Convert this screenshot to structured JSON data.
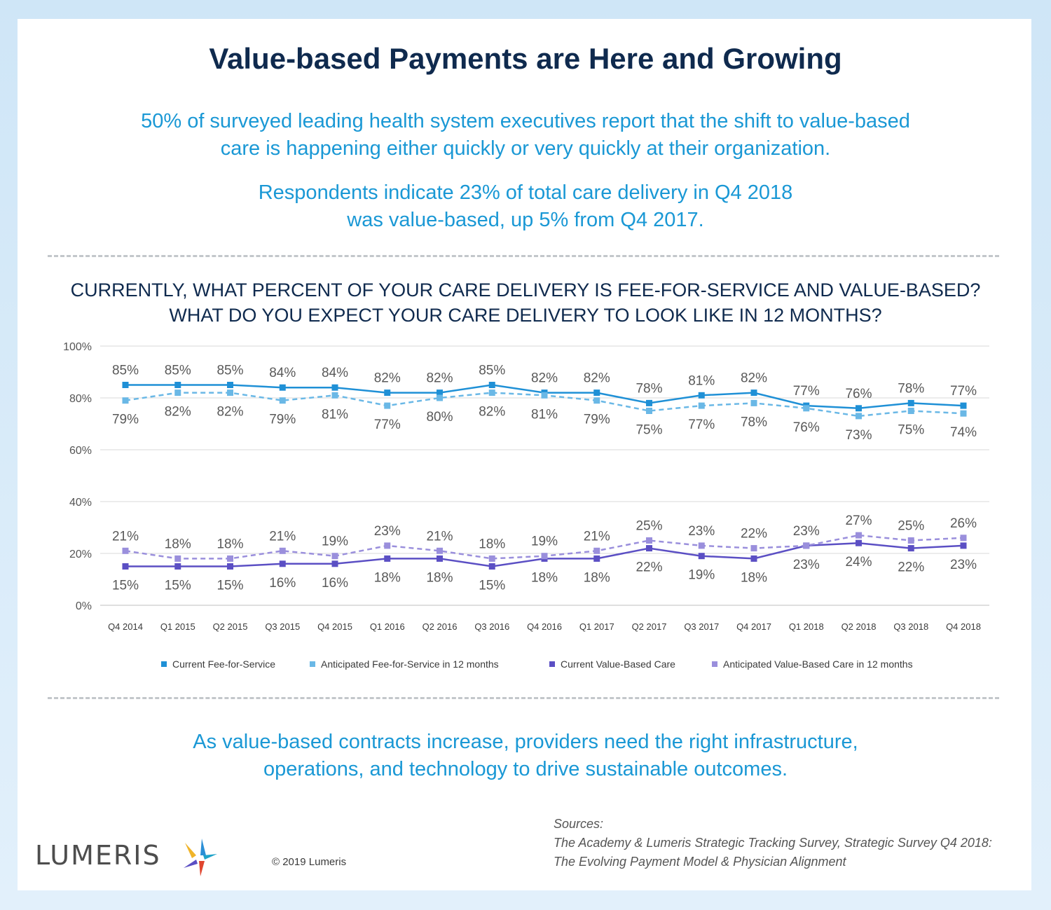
{
  "header": {
    "title": "Value-based Payments are Here and Growing",
    "subtitle_line1": "50% of surveyed leading health system executives report that the shift to value-based",
    "subtitle_line2": "care is happening either quickly or very quickly at their organization.",
    "stat_line1": "Respondents indicate 23% of total care delivery in Q4 2018",
    "stat_line2": "was value-based, up 5% from Q4 2017."
  },
  "question": {
    "line1": "CURRENTLY, WHAT PERCENT OF YOUR CARE DELIVERY IS FEE-FOR-SERVICE AND VALUE-BASED?",
    "line2": "WHAT DO YOU EXPECT YOUR CARE DELIVERY TO LOOK LIKE IN 12 MONTHS?"
  },
  "chart_data": {
    "type": "line",
    "title": "",
    "xlabel": "",
    "ylabel": "",
    "ylim": [
      0,
      100
    ],
    "yticks": [
      "0%",
      "20%",
      "40%",
      "60%",
      "80%",
      "100%"
    ],
    "grid": true,
    "legend_position": "bottom",
    "categories": [
      "Q4 2014",
      "Q1 2015",
      "Q2 2015",
      "Q3 2015",
      "Q4 2015",
      "Q1 2016",
      "Q2 2016",
      "Q3 2016",
      "Q4 2016",
      "Q1 2017",
      "Q2 2017",
      "Q3 2017",
      "Q4 2017",
      "Q1 2018",
      "Q2 2018",
      "Q3 2018",
      "Q4 2018"
    ],
    "series": [
      {
        "name": "Current Fee-for-Service",
        "color": "#1f90d6",
        "dashed": false,
        "label_position": "above",
        "values": [
          85,
          85,
          85,
          84,
          84,
          82,
          82,
          85,
          82,
          82,
          78,
          81,
          82,
          77,
          76,
          78,
          77
        ]
      },
      {
        "name": "Anticipated Fee-for-Service in 12 months",
        "color": "#6ab8e6",
        "dashed": true,
        "label_position": "below",
        "values": [
          79,
          82,
          82,
          79,
          81,
          77,
          80,
          82,
          81,
          79,
          75,
          77,
          78,
          76,
          73,
          75,
          74
        ]
      },
      {
        "name": "Current Value-Based Care",
        "color": "#5b4fc4",
        "dashed": false,
        "label_position": "below",
        "values": [
          15,
          15,
          15,
          16,
          16,
          18,
          18,
          15,
          18,
          18,
          22,
          19,
          18,
          23,
          24,
          22,
          23
        ]
      },
      {
        "name": "Anticipated Value-Based Care in 12 months",
        "color": "#9a8fdc",
        "dashed": true,
        "label_position": "above",
        "values": [
          21,
          18,
          18,
          21,
          19,
          23,
          21,
          18,
          19,
          21,
          25,
          23,
          22,
          23,
          27,
          25,
          26
        ]
      }
    ]
  },
  "footer": {
    "message_line1": "As value-based contracts increase, providers need the right infrastructure,",
    "message_line2": "operations, and technology to drive sustainable outcomes.",
    "logo_text": "LUMERIS",
    "copyright": "© 2019 Lumeris",
    "sources_label": "Sources:",
    "sources_line1": "The Academy & Lumeris Strategic Tracking Survey, Strategic Survey Q4 2018:",
    "sources_line2": "The Evolving Payment Model & Physician Alignment"
  }
}
